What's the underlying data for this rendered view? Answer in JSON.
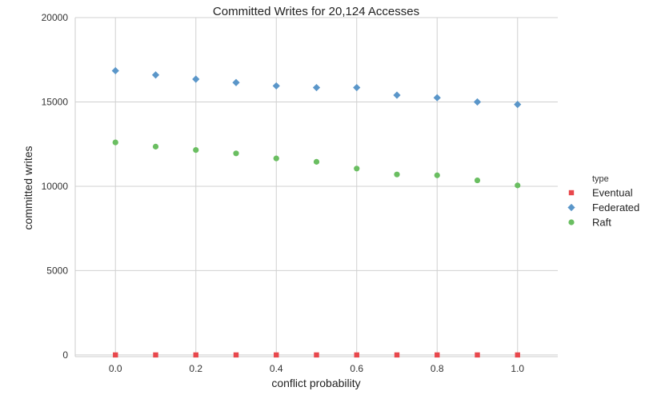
{
  "chart_data": {
    "type": "scatter",
    "title": "Committed Writes for 20,124 Accesses",
    "xlabel": "conflict probability",
    "ylabel": "committed writes",
    "xlim": [
      -0.1,
      1.1
    ],
    "ylim": [
      -100,
      20000
    ],
    "x": [
      0.0,
      0.1,
      0.2,
      0.3,
      0.4,
      0.5,
      0.6,
      0.7,
      0.8,
      0.9,
      1.0
    ],
    "xticks": [
      0.0,
      0.2,
      0.4,
      0.6,
      0.8,
      1.0
    ],
    "xtick_labels": [
      "0.0",
      "0.2",
      "0.4",
      "0.6",
      "0.8",
      "1.0"
    ],
    "yticks": [
      0,
      5000,
      10000,
      15000,
      20000
    ],
    "ytick_labels": [
      "0",
      "5000",
      "10000",
      "15000",
      "20000"
    ],
    "grid": true,
    "legend": {
      "title": "type",
      "placement": "right"
    },
    "series": [
      {
        "name": "Eventual",
        "marker": "square",
        "color": "#e8474c",
        "values": [
          0,
          0,
          0,
          0,
          0,
          0,
          0,
          0,
          0,
          0,
          0
        ]
      },
      {
        "name": "Federated",
        "marker": "diamond",
        "color": "#5a96c9",
        "values": [
          16850,
          16600,
          16350,
          16150,
          15950,
          15850,
          15850,
          15400,
          15250,
          15000,
          14850
        ]
      },
      {
        "name": "Raft",
        "marker": "circle",
        "color": "#6abe61",
        "values": [
          12600,
          12350,
          12150,
          11950,
          11650,
          11450,
          11050,
          10700,
          10650,
          10350,
          10050
        ]
      }
    ]
  }
}
